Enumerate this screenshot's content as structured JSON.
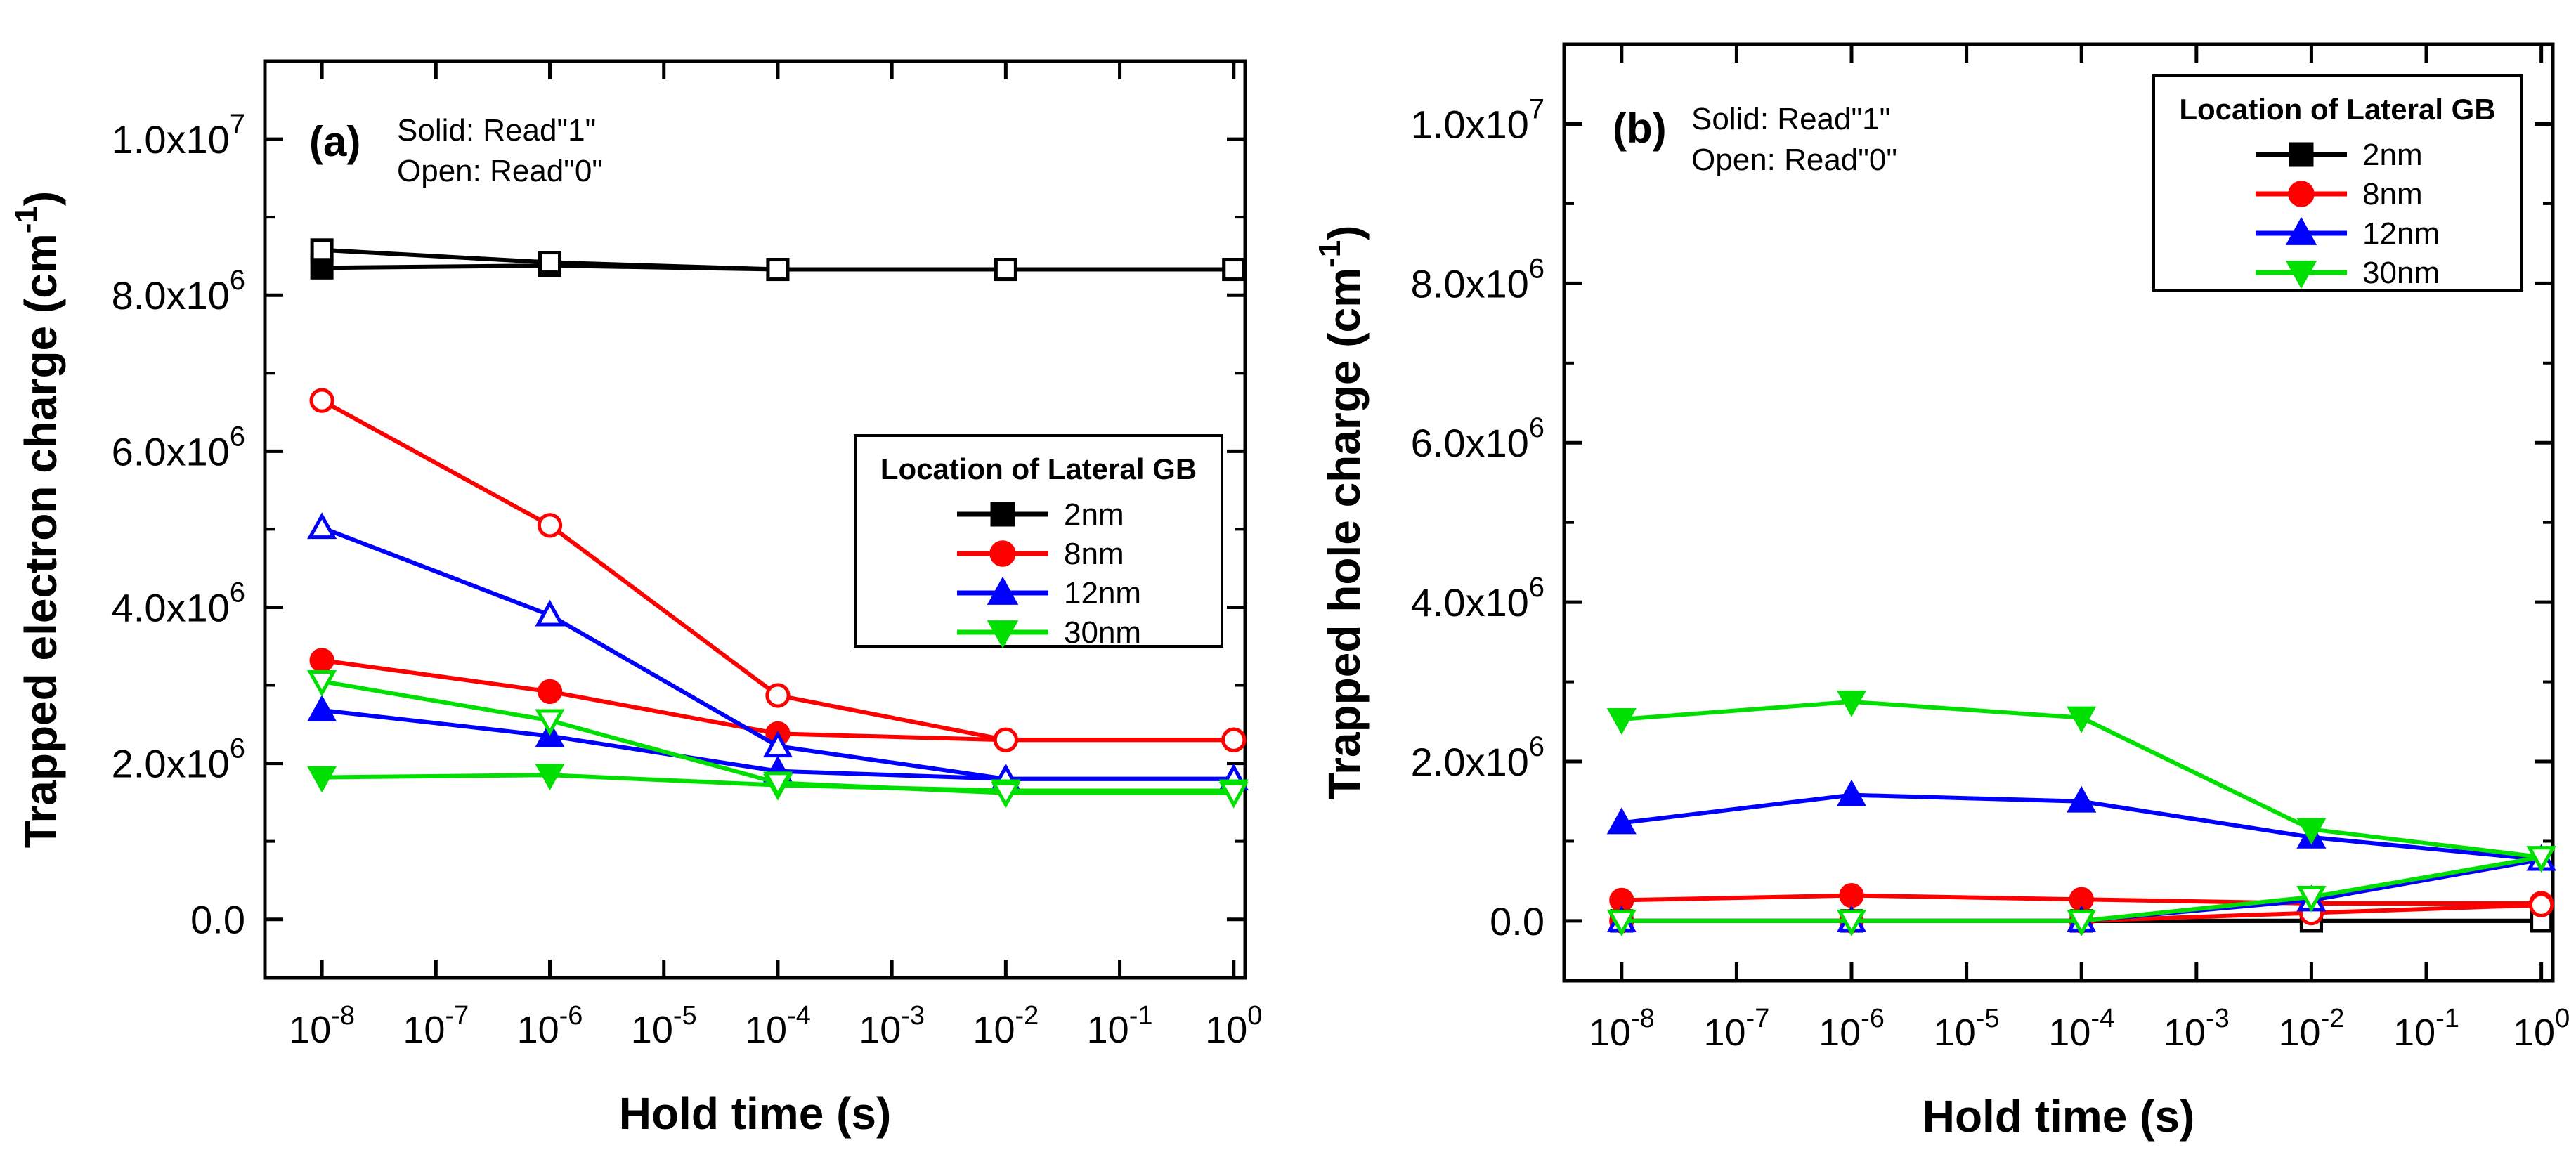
{
  "chart_data": [
    {
      "type": "line",
      "panel_label": "(a)",
      "xlabel": "Hold time (s)",
      "ylabel": "Trapped electron charge (cm",
      "ylabel_sup": "-1",
      "ylabel_close": ")",
      "xscale": "log",
      "x_exp_range": [
        -8.5,
        0.1
      ],
      "ylim": [
        -750000.0,
        11000000.0
      ],
      "x_ticks": [
        -8,
        -7,
        -6,
        -5,
        -4,
        -3,
        -2,
        -1,
        0
      ],
      "y_ticks": [
        {
          "value": 0,
          "mant": "0.0",
          "exp": ""
        },
        {
          "value": 2000000.0,
          "mant": "2.0x10",
          "exp": "6"
        },
        {
          "value": 4000000.0,
          "mant": "4.0x10",
          "exp": "6"
        },
        {
          "value": 6000000.0,
          "mant": "6.0x10",
          "exp": "6"
        },
        {
          "value": 8000000.0,
          "mant": "8.0x10",
          "exp": "6"
        },
        {
          "value": 10000000.0,
          "mant": "1.0x10",
          "exp": "7"
        }
      ],
      "annotation": [
        "Solid: Read\"1\"",
        "Open: Read\"0\""
      ],
      "legend": {
        "title": "Location of Lateral GB",
        "position": "center-right"
      },
      "series": [
        {
          "name": "2nm",
          "color": "#000000",
          "marker": "square",
          "read1": [
            8350000.0,
            8380000.0,
            8330000.0,
            8330000.0,
            8330000.0
          ],
          "read0": [
            8580000.0,
            8420000.0,
            8330000.0,
            8330000.0,
            8330000.0
          ]
        },
        {
          "name": "8nm",
          "color": "#ff0000",
          "marker": "circle",
          "read1": [
            3320000.0,
            2920000.0,
            2380000.0,
            2300000.0,
            2300000.0
          ],
          "read0": [
            6650000.0,
            5050000.0,
            2870000.0,
            2300000.0,
            2300000.0
          ]
        },
        {
          "name": "12nm",
          "color": "#0000ff",
          "marker": "triangle-up",
          "read1": [
            2680000.0,
            2350000.0,
            1900000.0,
            1800000.0,
            1800000.0
          ],
          "read0": [
            5020000.0,
            3900000.0,
            2220000.0,
            1800000.0,
            1800000.0
          ]
        },
        {
          "name": "30nm",
          "color": "#00e000",
          "marker": "triangle-down",
          "read1": [
            1820000.0,
            1850000.0,
            1720000.0,
            1650000.0,
            1650000.0
          ],
          "read0": [
            3050000.0,
            2550000.0,
            1750000.0,
            1620000.0,
            1620000.0
          ]
        }
      ]
    },
    {
      "type": "line",
      "panel_label": "(b)",
      "xlabel": "Hold time (s)",
      "ylabel": "Trapped hole charge (cm",
      "ylabel_sup": "-1",
      "ylabel_close": ")",
      "xscale": "log",
      "x_exp_range": [
        -8.5,
        0.1
      ],
      "ylim": [
        -750000.0,
        11000000.0
      ],
      "x_ticks": [
        -8,
        -7,
        -6,
        -5,
        -4,
        -3,
        -2,
        -1,
        0
      ],
      "y_ticks": [
        {
          "value": 0,
          "mant": "0.0",
          "exp": ""
        },
        {
          "value": 2000000.0,
          "mant": "2.0x10",
          "exp": "6"
        },
        {
          "value": 4000000.0,
          "mant": "4.0x10",
          "exp": "6"
        },
        {
          "value": 6000000.0,
          "mant": "6.0x10",
          "exp": "6"
        },
        {
          "value": 8000000.0,
          "mant": "8.0x10",
          "exp": "6"
        },
        {
          "value": 10000000.0,
          "mant": "1.0x10",
          "exp": "7"
        }
      ],
      "annotation": [
        "Solid: Read\"1\"",
        "Open: Read\"0\""
      ],
      "legend": {
        "title": "Location of Lateral GB",
        "position": "top-right"
      },
      "series": [
        {
          "name": "2nm",
          "color": "#000000",
          "marker": "square",
          "read1": [
            0,
            0,
            0,
            0,
            0
          ],
          "read0": [
            0,
            0,
            0,
            0,
            0
          ]
        },
        {
          "name": "8nm",
          "color": "#ff0000",
          "marker": "circle",
          "read1": [
            260000.0,
            320000.0,
            270000.0,
            220000.0,
            220000.0
          ],
          "read0": [
            0,
            0,
            0,
            100000.0,
            200000.0
          ]
        },
        {
          "name": "12nm",
          "color": "#0000ff",
          "marker": "triangle-up",
          "read1": [
            1230000.0,
            1580000.0,
            1500000.0,
            1050000.0,
            770000.0
          ],
          "read0": [
            0,
            0,
            0,
            260000.0,
            770000.0
          ]
        },
        {
          "name": "30nm",
          "color": "#00e000",
          "marker": "triangle-down",
          "read1": [
            2530000.0,
            2750000.0,
            2550000.0,
            1150000.0,
            800000.0
          ],
          "read0": [
            0,
            0,
            0,
            300000.0,
            800000.0
          ]
        }
      ]
    }
  ]
}
